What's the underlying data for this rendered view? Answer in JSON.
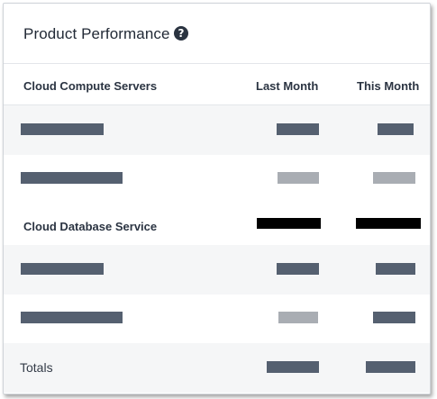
{
  "card": {
    "title": "Product Performance",
    "help_icon": "question-circle-icon",
    "help_glyph": "?"
  },
  "table": {
    "columns": [
      "Cloud Compute Servers",
      "Last Month",
      "This Month"
    ],
    "section_label": "Cloud Database Service",
    "totals_label": "Totals"
  },
  "colors": {
    "redacted_dark": "#556070",
    "redacted_light": "#a9adb3",
    "redacted_black": "#000000",
    "row_shade": "#f5f6f7"
  }
}
